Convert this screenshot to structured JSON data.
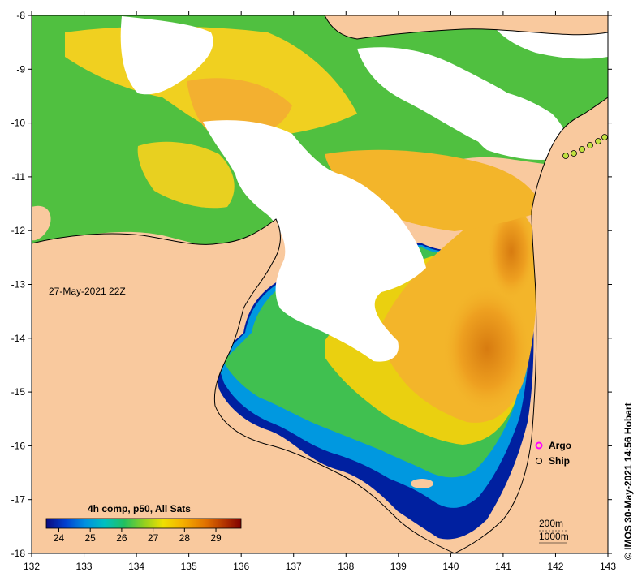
{
  "map": {
    "date_label": "27-May-2021 22Z",
    "credit": "© IMOS 30-May-2021 14:56 Hobart",
    "x_ticks": [
      "132",
      "133",
      "134",
      "135",
      "136",
      "137",
      "138",
      "139",
      "140",
      "141",
      "142",
      "143"
    ],
    "y_ticks": [
      "-8",
      "-9",
      "-10",
      "-11",
      "-12",
      "-13",
      "-14",
      "-15",
      "-16",
      "-17",
      "-18"
    ],
    "lon_range": [
      132,
      143
    ],
    "lat_range": [
      -18,
      -8
    ],
    "colors": {
      "land": "#f9c99e",
      "cloud": "#ffffff",
      "coastline": "#000000"
    }
  },
  "legend": {
    "title": "4h comp, p50, All Sats",
    "labels": [
      "24",
      "25",
      "26",
      "27",
      "28",
      "29"
    ],
    "range": [
      23.6,
      29.8
    ],
    "scale": [
      "#0a0a80",
      "#0040d0",
      "#0090e0",
      "#00c0c0",
      "#20c060",
      "#90d020",
      "#f0e000",
      "#f5b000",
      "#e07000",
      "#b03000",
      "#800000"
    ]
  },
  "markers": {
    "argo_label": "Argo",
    "ship_label": "Ship",
    "argo_color": "#ff00ff"
  },
  "contours": {
    "c200": "200m",
    "c1000": "1000m"
  }
}
